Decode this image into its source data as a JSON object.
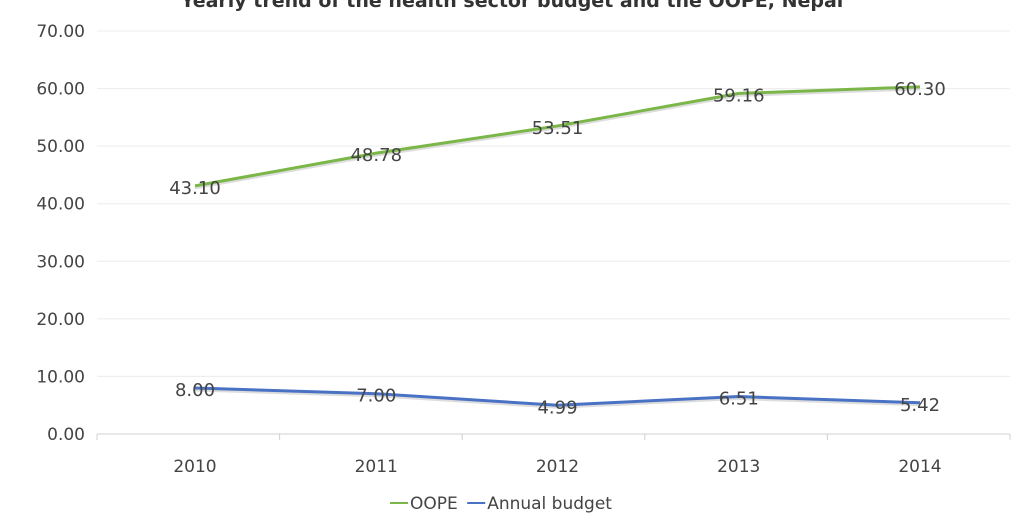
{
  "chart_data": {
    "type": "line",
    "title": "Yearly trend of the health sector budget and the OOPE, Nepal",
    "categories": [
      "2010",
      "2011",
      "2012",
      "2013",
      "2014"
    ],
    "series": [
      {
        "name": "OOPE",
        "values": [
          43.1,
          48.78,
          53.51,
          59.16,
          60.3
        ],
        "labels": [
          "43.10",
          "48.78",
          "53.51",
          "59.16",
          "60.30"
        ],
        "color": "#7ab648"
      },
      {
        "name": "Annual budget",
        "values": [
          8.0,
          7.0,
          4.99,
          6.51,
          5.42
        ],
        "labels": [
          "8.00",
          "7.00",
          "4.99",
          "6.51",
          "5.42"
        ],
        "color": "#4a72c4"
      }
    ],
    "ylim": [
      0,
      70
    ],
    "yticks": [
      "0.00",
      "10.00",
      "20.00",
      "30.00",
      "40.00",
      "50.00",
      "60.00",
      "70.00"
    ],
    "grid": true,
    "legend": "bottom"
  }
}
